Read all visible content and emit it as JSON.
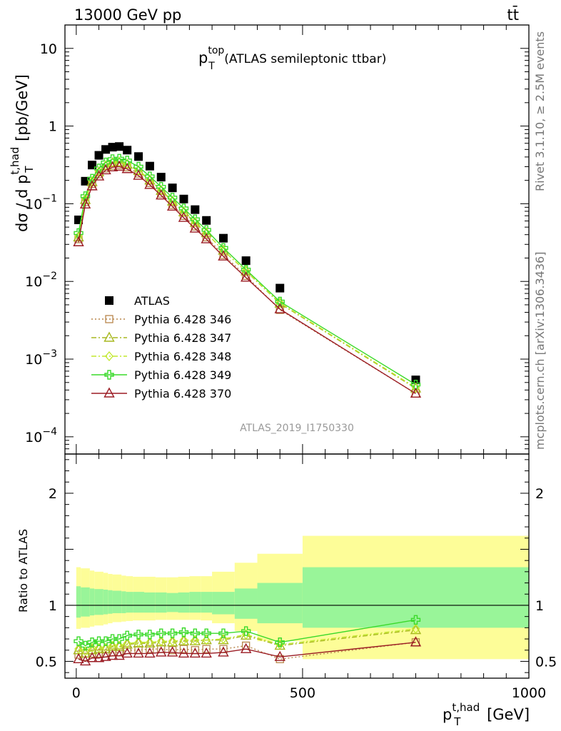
{
  "header": {
    "left": "13000 GeV pp",
    "right": "tt̄"
  },
  "side_texts": {
    "rivet": "Rivet 3.1.10, ≥ 2.5M events",
    "mcplots": "mcplots.cern.ch [arXiv:1306.3436]"
  },
  "analysis_id": "ATLAS_2019_I1750330",
  "colors": {
    "ratio_inner_band": "#99f599",
    "ratio_outer_band": "#fdfd98"
  },
  "chart_data": [
    {
      "type": "scatter",
      "title": "p_T^top (ATLAS semileptonic ttbar)",
      "title_main": "p",
      "title_sup": "top",
      "title_sub": "T",
      "title_rest": " (ATLAS semileptonic ttbar)",
      "ylabel": "dσ / d p_T^t,had [pb/GeV]",
      "ylabel_parts": {
        "pre": "dσ / d p",
        "sup": "t,had",
        "sub": "T",
        "post": " [pb/GeV]"
      },
      "yscale": "log",
      "ylim": [
        6e-05,
        20
      ],
      "xlim": [
        -25,
        1000
      ],
      "y_ticks": [
        {
          "value": 10,
          "base": "10",
          "exp": ""
        },
        {
          "value": 1,
          "base": "1",
          "exp": ""
        },
        {
          "value": 0.1,
          "base": "10",
          "exp": "−1"
        },
        {
          "value": 0.01,
          "base": "10",
          "exp": "−2"
        },
        {
          "value": 0.001,
          "base": "10",
          "exp": "−3"
        },
        {
          "value": 0.0001,
          "base": "10",
          "exp": "−4"
        }
      ],
      "x": [
        5,
        20,
        35,
        50,
        65,
        80,
        95,
        112.5,
        137.5,
        162.5,
        187.5,
        212.5,
        237.5,
        262.5,
        287.5,
        325,
        375,
        450,
        750
      ],
      "series": [
        {
          "name": "ATLAS",
          "marker": "square-filled",
          "color": "#000000",
          "style": "none",
          "values": [
            0.062,
            0.195,
            0.315,
            0.42,
            0.5,
            0.535,
            0.545,
            0.49,
            0.405,
            0.305,
            0.22,
            0.16,
            0.115,
            0.084,
            0.061,
            0.036,
            0.0185,
            0.0082,
            0.00054
          ]
        },
        {
          "name": "Pythia 6.428 346",
          "marker": "square-open",
          "color": "#b8864b",
          "style": "dotted",
          "values": [
            0.035,
            0.105,
            0.18,
            0.24,
            0.285,
            0.31,
            0.315,
            0.295,
            0.245,
            0.185,
            0.135,
            0.097,
            0.07,
            0.051,
            0.037,
            0.022,
            0.0118,
            0.0043,
            0.00036
          ]
        },
        {
          "name": "Pythia 6.428 347",
          "marker": "triangle-open",
          "color": "#a8b820",
          "style": "dashdot",
          "values": [
            0.037,
            0.112,
            0.19,
            0.255,
            0.305,
            0.335,
            0.34,
            0.32,
            0.265,
            0.2,
            0.147,
            0.107,
            0.078,
            0.057,
            0.042,
            0.025,
            0.0135,
            0.0052,
            0.00042
          ]
        },
        {
          "name": "Pythia 6.428 348",
          "marker": "diamond-open",
          "color": "#c2e82e",
          "style": "dashdot",
          "values": [
            0.038,
            0.115,
            0.195,
            0.26,
            0.31,
            0.34,
            0.345,
            0.325,
            0.27,
            0.205,
            0.15,
            0.109,
            0.079,
            0.058,
            0.042,
            0.025,
            0.0136,
            0.0053,
            0.00043
          ]
        },
        {
          "name": "Pythia 6.428 349",
          "marker": "cross-open",
          "color": "#3ada2a",
          "style": "solid",
          "values": [
            0.042,
            0.125,
            0.21,
            0.285,
            0.34,
            0.375,
            0.38,
            0.36,
            0.3,
            0.225,
            0.165,
            0.12,
            0.087,
            0.063,
            0.046,
            0.027,
            0.0142,
            0.0055,
            0.00047
          ]
        },
        {
          "name": "Pythia 6.428 370",
          "marker": "triangle-open",
          "color": "#9b1c24",
          "style": "solid",
          "values": [
            0.032,
            0.098,
            0.168,
            0.225,
            0.27,
            0.295,
            0.3,
            0.28,
            0.23,
            0.175,
            0.128,
            0.092,
            0.066,
            0.048,
            0.035,
            0.021,
            0.0112,
            0.0044,
            0.00036
          ]
        }
      ],
      "legend_placement": "lower-left"
    },
    {
      "type": "scatter",
      "title": "",
      "ylabel": "Ratio to ATLAS",
      "xlabel": "p_T^t,had [GeV]",
      "xlabel_parts": {
        "pre": "p",
        "sup": "t,had",
        "sub": "T",
        "post": " [GeV]"
      },
      "ylim": [
        0.35,
        2.35
      ],
      "xlim": [
        -25,
        1000
      ],
      "y_ticks": [
        0.5,
        1,
        2
      ],
      "x_ticks": [
        0,
        500,
        1000
      ],
      "reference_line": 1,
      "band_edges": [
        0,
        10,
        30,
        40,
        60,
        70,
        80,
        100,
        110,
        125,
        150,
        175,
        200,
        225,
        250,
        275,
        300,
        350,
        400,
        500,
        1000
      ],
      "band_inner": [
        [
          0.89,
          1.17
        ],
        [
          0.9,
          1.16
        ],
        [
          0.91,
          1.15
        ],
        [
          0.915,
          1.145
        ],
        [
          0.92,
          1.14
        ],
        [
          0.925,
          1.135
        ],
        [
          0.93,
          1.13
        ],
        [
          0.93,
          1.125
        ],
        [
          0.935,
          1.12
        ],
        [
          0.935,
          1.12
        ],
        [
          0.935,
          1.115
        ],
        [
          0.935,
          1.115
        ],
        [
          0.94,
          1.11
        ],
        [
          0.935,
          1.115
        ],
        [
          0.935,
          1.12
        ],
        [
          0.935,
          1.12
        ],
        [
          0.92,
          1.12
        ],
        [
          0.88,
          1.15
        ],
        [
          0.84,
          1.2
        ],
        [
          0.8,
          1.34
        ]
      ],
      "band_outer": [
        [
          0.79,
          1.34
        ],
        [
          0.8,
          1.33
        ],
        [
          0.81,
          1.31
        ],
        [
          0.82,
          1.3
        ],
        [
          0.83,
          1.29
        ],
        [
          0.84,
          1.28
        ],
        [
          0.85,
          1.275
        ],
        [
          0.855,
          1.265
        ],
        [
          0.86,
          1.26
        ],
        [
          0.865,
          1.255
        ],
        [
          0.865,
          1.255
        ],
        [
          0.87,
          1.25
        ],
        [
          0.87,
          1.25
        ],
        [
          0.87,
          1.255
        ],
        [
          0.87,
          1.26
        ],
        [
          0.865,
          1.26
        ],
        [
          0.84,
          1.3
        ],
        [
          0.77,
          1.38
        ],
        [
          0.68,
          1.46
        ],
        [
          0.52,
          1.62
        ]
      ],
      "x": [
        5,
        20,
        35,
        50,
        65,
        80,
        95,
        112.5,
        137.5,
        162.5,
        187.5,
        212.5,
        237.5,
        262.5,
        287.5,
        325,
        375,
        450,
        750
      ],
      "series": [
        {
          "name": "Pythia 6.428 346",
          "values": [
            0.56,
            0.54,
            0.57,
            0.57,
            0.57,
            0.58,
            0.58,
            0.6,
            0.6,
            0.61,
            0.61,
            0.6,
            0.61,
            0.6,
            0.61,
            0.61,
            0.64,
            0.52,
            0.67
          ]
        },
        {
          "name": "Pythia 6.428 347",
          "values": [
            0.6,
            0.57,
            0.6,
            0.61,
            0.61,
            0.63,
            0.63,
            0.65,
            0.66,
            0.66,
            0.67,
            0.67,
            0.68,
            0.68,
            0.69,
            0.69,
            0.73,
            0.64,
            0.78
          ]
        },
        {
          "name": "Pythia 6.428 348",
          "values": [
            0.61,
            0.59,
            0.62,
            0.62,
            0.62,
            0.64,
            0.64,
            0.66,
            0.67,
            0.67,
            0.68,
            0.68,
            0.69,
            0.69,
            0.69,
            0.7,
            0.74,
            0.65,
            0.79
          ]
        },
        {
          "name": "Pythia 6.428 349",
          "values": [
            0.68,
            0.64,
            0.67,
            0.68,
            0.68,
            0.7,
            0.7,
            0.73,
            0.74,
            0.74,
            0.75,
            0.75,
            0.76,
            0.75,
            0.75,
            0.75,
            0.77,
            0.67,
            0.87
          ]
        },
        {
          "name": "Pythia 6.428 370",
          "values": [
            0.52,
            0.5,
            0.53,
            0.53,
            0.54,
            0.55,
            0.55,
            0.57,
            0.57,
            0.57,
            0.58,
            0.58,
            0.57,
            0.57,
            0.57,
            0.58,
            0.61,
            0.54,
            0.67
          ]
        }
      ]
    }
  ]
}
